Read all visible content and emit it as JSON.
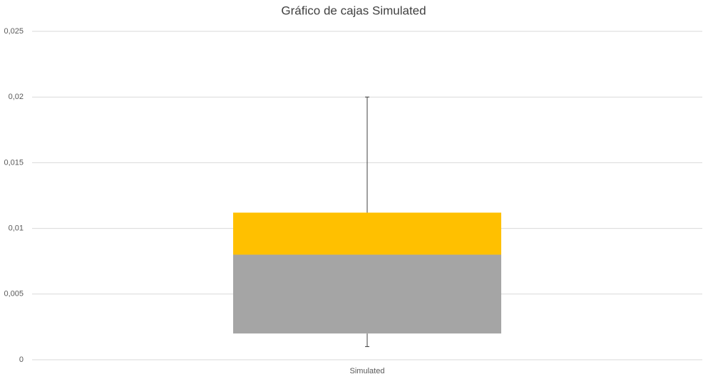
{
  "chart_data": {
    "type": "box",
    "title": "Gráfico de cajas Simulated",
    "categories": [
      "Simulated"
    ],
    "min": [
      0.001
    ],
    "q1": [
      0.002
    ],
    "median": [
      0.008
    ],
    "q3": [
      0.0112
    ],
    "max": [
      0.02
    ],
    "lower_color": "#a5a5a5",
    "upper_color": "#ffc000",
    "whisker_color": "#404040",
    "ylim": [
      0,
      0.025
    ],
    "yticks": [
      0,
      {
        "value": 0.005,
        "label": "0,005"
      },
      {
        "value": 0.01,
        "label": "0,01"
      },
      {
        "value": 0.015,
        "label": "0,015"
      },
      {
        "value": 0.02,
        "label": "0,02"
      },
      {
        "value": 0.025,
        "label": "0,025"
      }
    ],
    "grid": true
  }
}
